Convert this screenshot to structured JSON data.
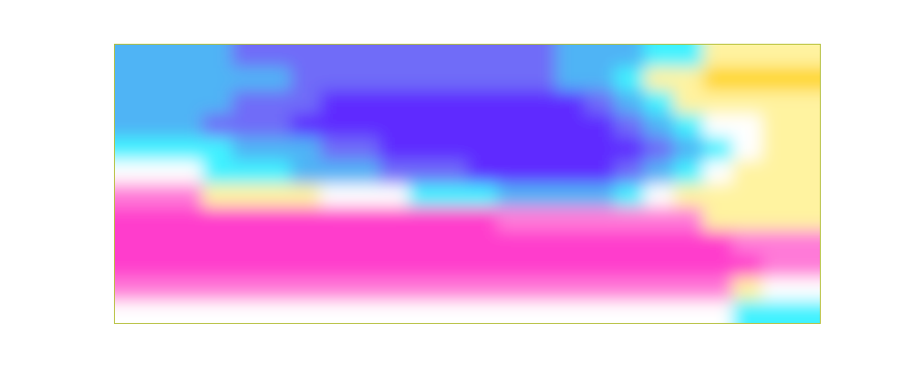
{
  "chart_data": {
    "type": "heatmap",
    "tick_labels": false,
    "zlim": [
      0,
      8
    ],
    "values": [
      [
        2,
        2,
        2,
        2,
        1,
        1,
        1,
        1,
        1,
        1,
        1,
        1,
        1,
        1,
        1,
        2,
        2,
        2,
        3,
        3,
        5,
        5,
        5,
        5
      ],
      [
        2,
        2,
        2,
        2,
        2,
        2,
        1,
        1,
        1,
        1,
        1,
        1,
        1,
        1,
        1,
        2,
        2,
        3,
        5,
        5,
        6,
        6,
        6,
        6
      ],
      [
        2,
        2,
        2,
        2,
        1,
        1,
        1,
        0,
        0,
        0,
        0,
        0,
        0,
        0,
        0,
        0,
        1,
        2,
        3,
        5,
        5,
        5,
        5,
        5
      ],
      [
        2,
        2,
        2,
        1,
        1,
        1,
        0,
        0,
        0,
        0,
        0,
        0,
        0,
        0,
        0,
        0,
        0,
        1,
        2,
        3,
        4,
        4,
        5,
        5
      ],
      [
        3,
        3,
        3,
        3,
        2,
        2,
        2,
        1,
        1,
        0,
        0,
        0,
        0,
        0,
        0,
        0,
        0,
        0,
        1,
        2,
        3,
        4,
        5,
        5
      ],
      [
        4,
        4,
        4,
        3,
        3,
        3,
        2,
        2,
        2,
        1,
        1,
        1,
        0,
        0,
        0,
        0,
        0,
        1,
        2,
        3,
        4,
        5,
        5,
        5
      ],
      [
        7,
        7,
        7,
        5,
        5,
        5,
        5,
        4,
        4,
        4,
        3,
        3,
        3,
        2,
        2,
        2,
        2,
        3,
        4,
        5,
        5,
        5,
        5,
        5
      ],
      [
        8,
        8,
        8,
        8,
        8,
        8,
        8,
        8,
        8,
        8,
        8,
        8,
        8,
        7,
        7,
        7,
        7,
        7,
        7,
        7,
        5,
        5,
        5,
        5
      ],
      [
        8,
        8,
        8,
        8,
        8,
        8,
        8,
        8,
        8,
        8,
        8,
        8,
        8,
        8,
        8,
        8,
        8,
        8,
        8,
        8,
        8,
        7,
        7,
        7
      ],
      [
        8,
        8,
        8,
        8,
        8,
        8,
        8,
        8,
        8,
        8,
        8,
        8,
        8,
        8,
        8,
        8,
        8,
        8,
        8,
        8,
        8,
        8,
        7,
        7
      ],
      [
        7,
        7,
        7,
        7,
        7,
        7,
        7,
        7,
        7,
        7,
        7,
        7,
        7,
        7,
        7,
        7,
        7,
        7,
        7,
        7,
        7,
        5,
        4,
        4
      ],
      [
        4,
        4,
        4,
        4,
        4,
        4,
        4,
        4,
        4,
        4,
        4,
        4,
        4,
        4,
        4,
        4,
        4,
        4,
        4,
        4,
        4,
        3,
        3,
        3
      ]
    ]
  }
}
